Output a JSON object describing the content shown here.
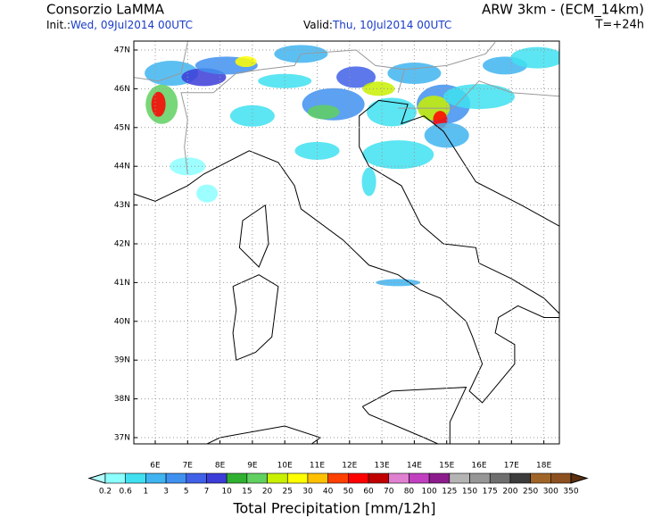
{
  "header": {
    "title": "Consorzio LaMMA",
    "init_label": "Init.:",
    "init_value": "Wed, 09Jul2014 00UTC",
    "model": "ARW 3km - (ECM_14km)",
    "valid_label": "Valid:",
    "valid_value": "Thu, 10Jul2014 00UTC",
    "lead_time": "T=+24h"
  },
  "map": {
    "lat_labels": [
      "47N",
      "46N",
      "45N",
      "44N",
      "43N",
      "42N",
      "41N",
      "40N",
      "39N",
      "38N",
      "37N"
    ],
    "lon_labels": [
      "6E",
      "7E",
      "8E",
      "9E",
      "10E",
      "11E",
      "12E",
      "13E",
      "14E",
      "15E",
      "16E",
      "17E",
      "18E"
    ]
  },
  "colorbar": {
    "levels": [
      0.2,
      0.6,
      1,
      3,
      5,
      7,
      10,
      15,
      20,
      25,
      30,
      40,
      50,
      60,
      70,
      80,
      100,
      125,
      150,
      175,
      200,
      250,
      300,
      350
    ],
    "colors": [
      "#b4ffff",
      "#8cffff",
      "#40e0f0",
      "#40b4f0",
      "#4090f0",
      "#4060e8",
      "#3c3cd8",
      "#30b030",
      "#60d060",
      "#c8f000",
      "#ffff00",
      "#ffc000",
      "#ff4000",
      "#ff0000",
      "#c00000",
      "#e080d0",
      "#c040c0",
      "#8c1c8c",
      "#b4b4b4",
      "#969696",
      "#6e6e6e",
      "#3c3c3c",
      "#a06428",
      "#8c5020",
      "#5a3010"
    ],
    "title": "Total Precipitation [mm/12h]"
  }
}
